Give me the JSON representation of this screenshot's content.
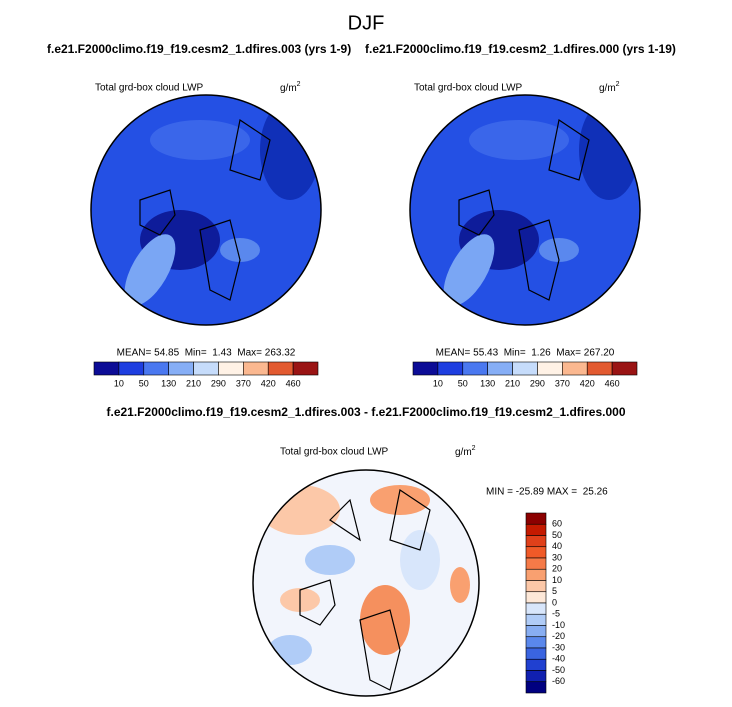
{
  "title": "DJF",
  "panels": [
    {
      "heading": "f.e21.F2000climo.f19_f19.cesm2_1.dfires.003 (yrs 1-9)",
      "variable": "Total grd-box cloud LWP",
      "units": "g/m",
      "units_sup": "2",
      "stats": "MEAN= 54.85  Min=  1.43  Max= 263.32"
    },
    {
      "heading": "f.e21.F2000climo.f19_f19.cesm2_1.dfires.000 (yrs 1-19)",
      "variable": "Total grd-box cloud LWP",
      "units": "g/m",
      "units_sup": "2",
      "stats": "MEAN= 55.43  Min=  1.26  Max= 267.20"
    }
  ],
  "colorbar": {
    "labels": [
      "10",
      "50",
      "130",
      "210",
      "290",
      "370",
      "420",
      "460"
    ],
    "colors": [
      "#0c0c96",
      "#1e3ee0",
      "#4a78f0",
      "#86aef6",
      "#c6dcfb",
      "#fff2e6",
      "#fbb890",
      "#e25a30",
      "#9a1414"
    ]
  },
  "difference": {
    "heading": "f.e21.F2000climo.f19_f19.cesm2_1.dfires.003 - f.e21.F2000climo.f19_f19.cesm2_1.dfires.000",
    "variable": "Total grd-box cloud LWP",
    "units": "g/m",
    "units_sup": "2",
    "stats": "MIN = -25.89 MAX =  25.26",
    "colorbar": {
      "labels": [
        "60",
        "50",
        "40",
        "30",
        "20",
        "10",
        "5",
        "0",
        "-5",
        "-10",
        "-20",
        "-30",
        "-40",
        "-50",
        "-60"
      ],
      "colors": [
        "#8b0000",
        "#c41a00",
        "#e0401a",
        "#f05a28",
        "#f57a48",
        "#f9a070",
        "#fcc8a8",
        "#fde8d8",
        "#d8e6fb",
        "#b0ccf7",
        "#88aef2",
        "#5a88ec",
        "#3a64e0",
        "#2040d0",
        "#1020b0",
        "#000080"
      ]
    }
  }
}
